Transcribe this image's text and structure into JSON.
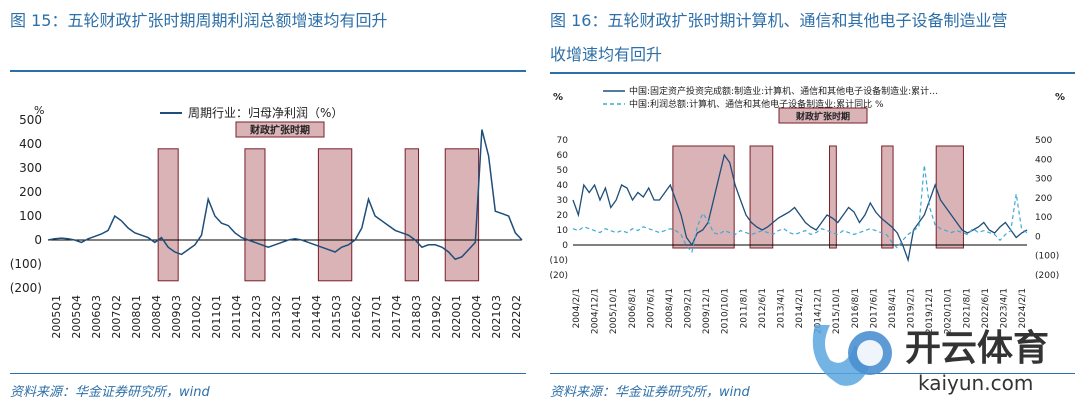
{
  "left": {
    "title": "图 15：五轮财政扩张时期周期利润总额增速均有回升",
    "source": "资料来源：华金证券研究所，wind"
  },
  "right": {
    "title_line1": "图 16：五轮财政扩张时期计算机、通信和其他电子设备制造业营",
    "title_line2": "收增速均有回升",
    "source": "资料来源：华金证券研究所，wind"
  },
  "watermark": {
    "brand": "开云体育",
    "url": "kaiyun.com"
  },
  "colors": {
    "accent": "#2d6fa8",
    "line": "#1f4e79",
    "dashed": "#3fa9d6",
    "shade": "#d9b3b6",
    "shade_border": "#7a1f2b"
  },
  "chart_data": [
    {
      "type": "line",
      "title": "",
      "unit_label": "%",
      "legend": "周期行业：归母净利润（%）",
      "annotation": "财政扩张时期",
      "ylim": [
        -200,
        500
      ],
      "y_ticks": [
        500,
        400,
        300,
        200,
        100,
        0,
        -100,
        -200
      ],
      "y_tick_labels": [
        "500",
        "400",
        "300",
        "200",
        "100",
        "0",
        "(100)",
        "(200)"
      ],
      "x_labels": [
        "2005Q1",
        "2005Q4",
        "2006Q3",
        "2007Q2",
        "2008Q1",
        "2008Q4",
        "2009Q3",
        "2010Q2",
        "2011Q1",
        "2011Q4",
        "2012Q3",
        "2013Q2",
        "2014Q1",
        "2014Q4",
        "2015Q3",
        "2016Q2",
        "2017Q1",
        "2017Q4",
        "2018Q3",
        "2019Q2",
        "2020Q1",
        "2020Q4",
        "2021Q3",
        "2022Q2"
      ],
      "shaded_periods": [
        [
          16.5,
          19.5
        ],
        [
          29.5,
          32.5
        ],
        [
          40.5,
          45.5
        ],
        [
          53.5,
          55.5
        ],
        [
          59.5,
          64.5
        ]
      ],
      "series": [
        {
          "name": "周期行业：归母净利润（%）",
          "values": [
            0,
            5,
            8,
            5,
            0,
            -10,
            5,
            15,
            25,
            40,
            100,
            80,
            50,
            30,
            20,
            10,
            -10,
            10,
            -30,
            -50,
            -60,
            -40,
            -20,
            20,
            170,
            100,
            70,
            60,
            30,
            10,
            0,
            -10,
            -20,
            -30,
            -20,
            -10,
            0,
            5,
            0,
            -10,
            -20,
            -30,
            -40,
            -50,
            -30,
            -20,
            0,
            50,
            170,
            100,
            80,
            60,
            40,
            30,
            20,
            0,
            -30,
            -20,
            -20,
            -30,
            -50,
            -80,
            -70,
            -40,
            -10,
            460,
            350,
            120,
            110,
            100,
            30,
            0
          ]
        }
      ]
    },
    {
      "type": "line",
      "title": "",
      "left_unit": "%",
      "right_unit": "%",
      "annotation": "财政扩张时期",
      "ylim_left": [
        -20,
        70
      ],
      "ylim_right": [
        -200,
        500
      ],
      "y_left_ticks": [
        70,
        60,
        50,
        40,
        30,
        20,
        10,
        0,
        -10,
        -20
      ],
      "y_left_tick_labels": [
        "70",
        "60",
        "50",
        "40",
        "30",
        "20",
        "10",
        "0",
        "(10)",
        "(20)"
      ],
      "y_right_ticks": [
        500,
        400,
        300,
        200,
        100,
        0,
        -100,
        -200
      ],
      "y_right_tick_labels": [
        "500",
        "400",
        "300",
        "200",
        "100",
        "0",
        "(100)",
        "(200)"
      ],
      "x_labels": [
        "2004/2/1",
        "2004/12/1",
        "2005/10/1",
        "2006/8/1",
        "2007/6/1",
        "2008/4/1",
        "2009/2/1",
        "2009/12/1",
        "2010/10/1",
        "2011/8/1",
        "2012/6/1",
        "2013/4/1",
        "2014/2/1",
        "2014/12/1",
        "2015/10/1",
        "2016/8/1",
        "2017/6/1",
        "2018/4/1",
        "2019/2/1",
        "2019/12/1",
        "2020/10/1",
        "2021/8/1",
        "2022/6/1",
        "2023/4/1",
        "2024/2/1"
      ],
      "shaded_periods": [
        [
          0.22,
          0.355
        ],
        [
          0.39,
          0.44
        ],
        [
          0.565,
          0.58
        ],
        [
          0.68,
          0.705
        ],
        [
          0.8,
          0.86
        ]
      ],
      "series": [
        {
          "name": "中国:固定资产投资完成额:制造业:计算机、通信和其他电子设备制造业:累计…",
          "axis": "left",
          "values": [
            30,
            20,
            40,
            35,
            40,
            30,
            38,
            25,
            30,
            40,
            38,
            30,
            35,
            32,
            38,
            30,
            30,
            35,
            40,
            30,
            20,
            5,
            0,
            8,
            10,
            15,
            30,
            45,
            60,
            55,
            40,
            30,
            20,
            15,
            12,
            10,
            12,
            15,
            18,
            20,
            22,
            25,
            20,
            15,
            12,
            10,
            15,
            20,
            18,
            15,
            20,
            25,
            22,
            15,
            20,
            28,
            22,
            18,
            15,
            12,
            8,
            0,
            -10,
            10,
            15,
            20,
            30,
            40,
            30,
            25,
            20,
            15,
            10,
            8,
            10,
            12,
            15,
            10,
            8,
            12,
            15,
            10,
            5,
            8,
            10
          ]
        },
        {
          "name": "中国:利润总额:计算机、通信和其他电子设备制造业:累计同比 %",
          "axis": "right",
          "values": [
            40,
            30,
            50,
            40,
            30,
            20,
            40,
            30,
            20,
            30,
            20,
            40,
            30,
            50,
            40,
            30,
            20,
            30,
            40,
            30,
            10,
            -50,
            -80,
            50,
            120,
            80,
            20,
            10,
            30,
            20,
            10,
            30,
            20,
            10,
            20,
            30,
            20,
            10,
            30,
            40,
            20,
            10,
            20,
            30,
            10,
            20,
            40,
            30,
            20,
            10,
            30,
            20,
            10,
            20,
            30,
            40,
            30,
            20,
            10,
            -30,
            -60,
            -20,
            10,
            30,
            50,
            370,
            150,
            60,
            40,
            30,
            20,
            30,
            20,
            10,
            40,
            20,
            30,
            20,
            10,
            -20,
            10,
            30,
            220,
            40,
            20
          ]
        }
      ]
    }
  ]
}
